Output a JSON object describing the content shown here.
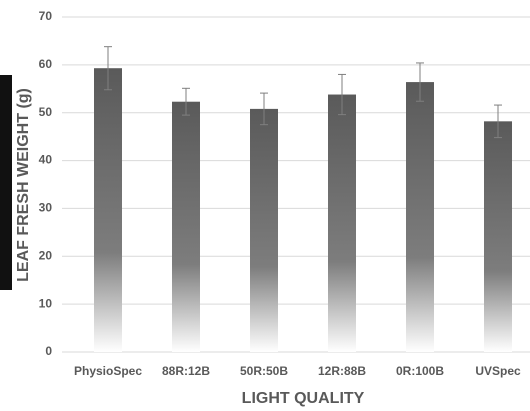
{
  "chart_data": {
    "type": "bar",
    "x_label": "LIGHT QUALITY",
    "y_label": "LEAF FRESH WEIGHT (g)",
    "categories": [
      "PhysioSpec",
      "88R:12B",
      "50R:50B",
      "12R:88B",
      "0R:100B",
      "UVSpec"
    ],
    "values": [
      59.3,
      52.3,
      50.8,
      53.8,
      56.4,
      48.2
    ],
    "errors": [
      4.5,
      2.8,
      3.3,
      4.2,
      4.0,
      3.4
    ],
    "color": "#595959",
    "ylim": [
      0,
      70
    ],
    "yticks": [
      0,
      10,
      20,
      30,
      40,
      50,
      60,
      70
    ],
    "grid": true
  }
}
